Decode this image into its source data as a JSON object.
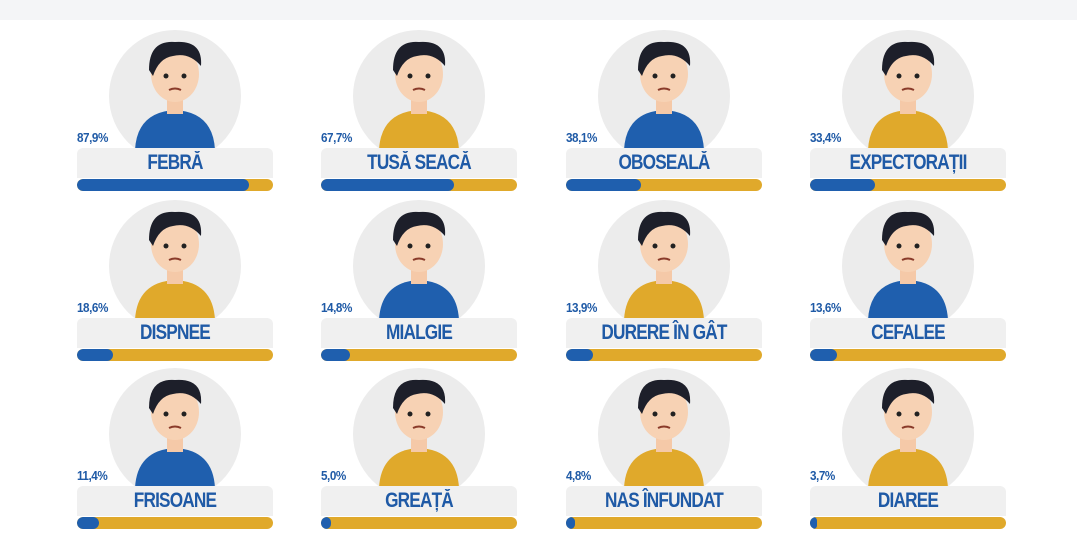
{
  "chart_data": {
    "type": "bar",
    "unit": "%",
    "categories": [
      "FEBRĂ",
      "TUSĂ SEACĂ",
      "OBOSEALĂ",
      "EXPECTORAȚII",
      "DISPNEE",
      "MIALGIE",
      "DURERE ÎN GÂT",
      "CEFALEE",
      "FRISOANE",
      "GREAȚĂ",
      "NAS ÎNFUNDAT",
      "DIAREE"
    ],
    "values": [
      87.9,
      67.7,
      38.1,
      33.4,
      18.6,
      14.8,
      13.9,
      13.6,
      11.4,
      5.0,
      4.8,
      3.7
    ],
    "labels": [
      "87,9%",
      "67,7%",
      "38,1%",
      "33,4%",
      "18,6%",
      "14,8%",
      "13,9%",
      "13,6%",
      "11,4%",
      "5,0%",
      "4,8%",
      "3,7%"
    ],
    "ylim": [
      0,
      100
    ],
    "shirt_colors": [
      "#1f5fae",
      "#e0a92b",
      "#1f5fae",
      "#e0a92b",
      "#e0a92b",
      "#1f5fae",
      "#e0a92b",
      "#1f5fae",
      "#1f5fae",
      "#e0a92b",
      "#e0a92b",
      "#e0a92b"
    ]
  },
  "colors": {
    "fill": "#1f5fae",
    "track": "#e0a92b",
    "text": "#1f5aa6"
  }
}
